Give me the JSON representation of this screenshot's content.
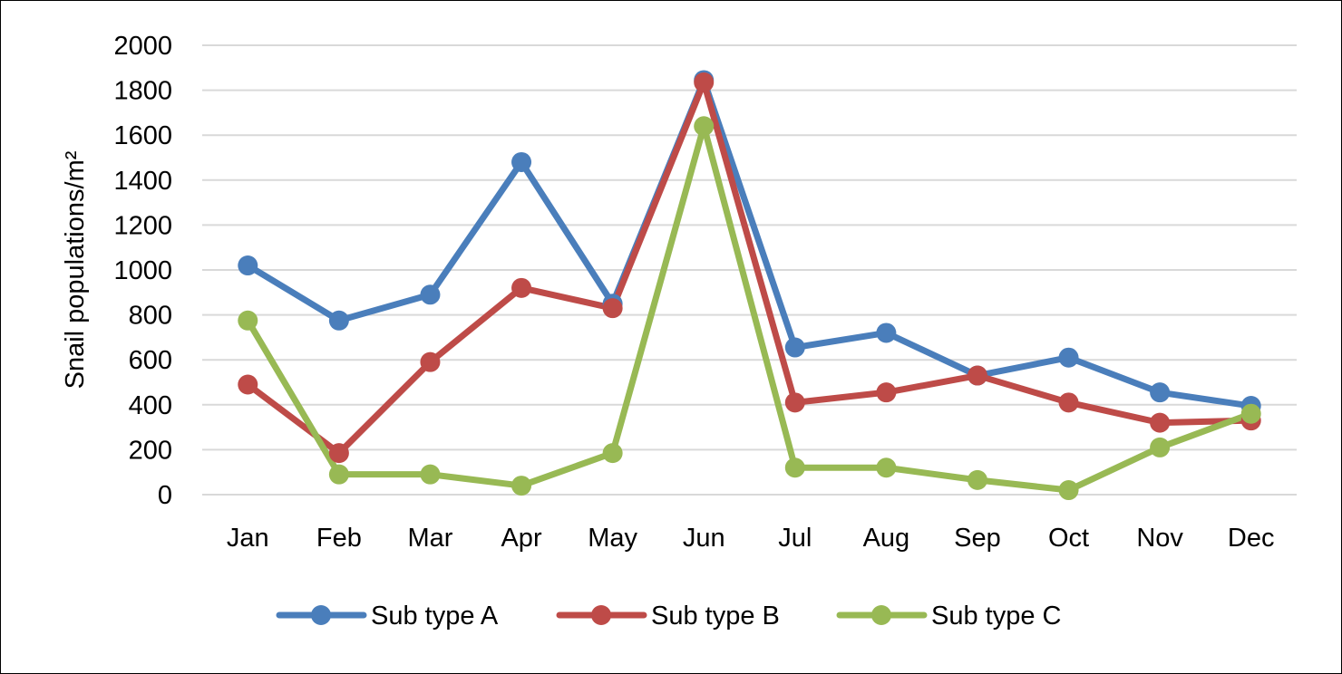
{
  "chart_data": {
    "type": "line",
    "title": "",
    "xlabel": "",
    "ylabel": "Snail populations/m²",
    "categories": [
      "Jan",
      "Feb",
      "Mar",
      "Apr",
      "May",
      "Jun",
      "Jul",
      "Aug",
      "Sep",
      "Oct",
      "Nov",
      "Dec"
    ],
    "ylim": [
      0,
      2000
    ],
    "yticks": [
      0,
      200,
      400,
      600,
      800,
      1000,
      1200,
      1400,
      1600,
      1800,
      2000
    ],
    "grid": true,
    "legend_position": "bottom",
    "series": [
      {
        "name": "Sub type A",
        "color": "#4A7EBB",
        "values": [
          1020,
          775,
          890,
          1480,
          850,
          1845,
          655,
          720,
          530,
          610,
          455,
          395
        ]
      },
      {
        "name": "Sub type B",
        "color": "#BE4B48",
        "values": [
          490,
          185,
          590,
          920,
          830,
          1835,
          410,
          455,
          530,
          410,
          320,
          330
        ]
      },
      {
        "name": "Sub type C",
        "color": "#98B954",
        "values": [
          775,
          90,
          90,
          40,
          185,
          1640,
          120,
          120,
          65,
          20,
          210,
          360
        ]
      }
    ]
  }
}
